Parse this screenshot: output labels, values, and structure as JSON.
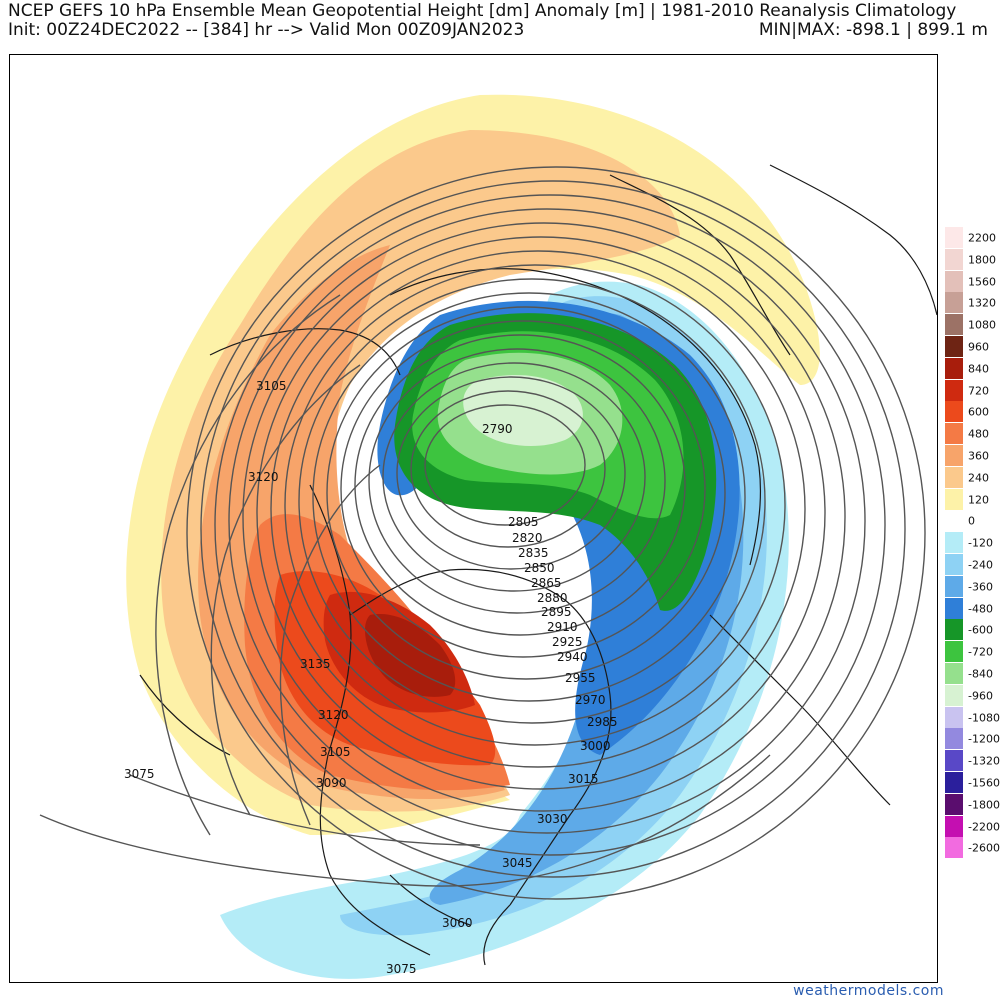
{
  "header": {
    "title": "NCEP GEFS 10 hPa Ensemble Mean Geopotential Height [dm] Anomaly [m] | 1981-2010 Reanalysis Climatology",
    "init_line": "Init: 00Z24DEC2022 -- [384] hr --> Valid Mon 00Z09JAN2023",
    "minmax": "MIN|MAX: -898.1 | 899.1 m"
  },
  "colorbar": {
    "levels": [
      {
        "label": "2200",
        "color": "#fde8e8"
      },
      {
        "label": "1800",
        "color": "#f2d6d2"
      },
      {
        "label": "1560",
        "color": "#e3c0b9"
      },
      {
        "label": "1320",
        "color": "#c7a096"
      },
      {
        "label": "1080",
        "color": "#9c7266"
      },
      {
        "label": "960",
        "color": "#6e2414"
      },
      {
        "label": "840",
        "color": "#a81d0c"
      },
      {
        "label": "720",
        "color": "#cf2a10"
      },
      {
        "label": "600",
        "color": "#ec4a1c"
      },
      {
        "label": "480",
        "color": "#f47a45"
      },
      {
        "label": "360",
        "color": "#f7a46a"
      },
      {
        "label": "240",
        "color": "#fbc98c"
      },
      {
        "label": "120",
        "color": "#fdf2a8"
      },
      {
        "label": "0",
        "color": "#ffffff"
      },
      {
        "label": "-120",
        "color": "#b4ecf7"
      },
      {
        "label": "-240",
        "color": "#8ed2f4"
      },
      {
        "label": "-360",
        "color": "#5eaae8"
      },
      {
        "label": "-480",
        "color": "#2f7fd8"
      },
      {
        "label": "-600",
        "color": "#169628"
      },
      {
        "label": "-720",
        "color": "#3dc43f"
      },
      {
        "label": "-840",
        "color": "#95e08d"
      },
      {
        "label": "-960",
        "color": "#d7f2d2"
      },
      {
        "label": "-1080",
        "color": "#c9c3f0"
      },
      {
        "label": "-1200",
        "color": "#9389df"
      },
      {
        "label": "-1320",
        "color": "#5948c7"
      },
      {
        "label": "-1560",
        "color": "#2b1f9c"
      },
      {
        "label": "-1800",
        "color": "#5a0d6e"
      },
      {
        "label": "-2200",
        "color": "#c40fb1"
      },
      {
        "label": "-2600",
        "color": "#f26be0"
      }
    ]
  },
  "contour_labels": [
    "2790",
    "2805",
    "2820",
    "2835",
    "2850",
    "2865",
    "2880",
    "2895",
    "2910",
    "2925",
    "2940",
    "2955",
    "2970",
    "2985",
    "3000",
    "3015",
    "3030",
    "3045",
    "3060",
    "3075",
    "3075",
    "3090",
    "3105",
    "3105",
    "3120",
    "3120",
    "3135"
  ],
  "footer": {
    "credit": "weathermodels.com"
  }
}
